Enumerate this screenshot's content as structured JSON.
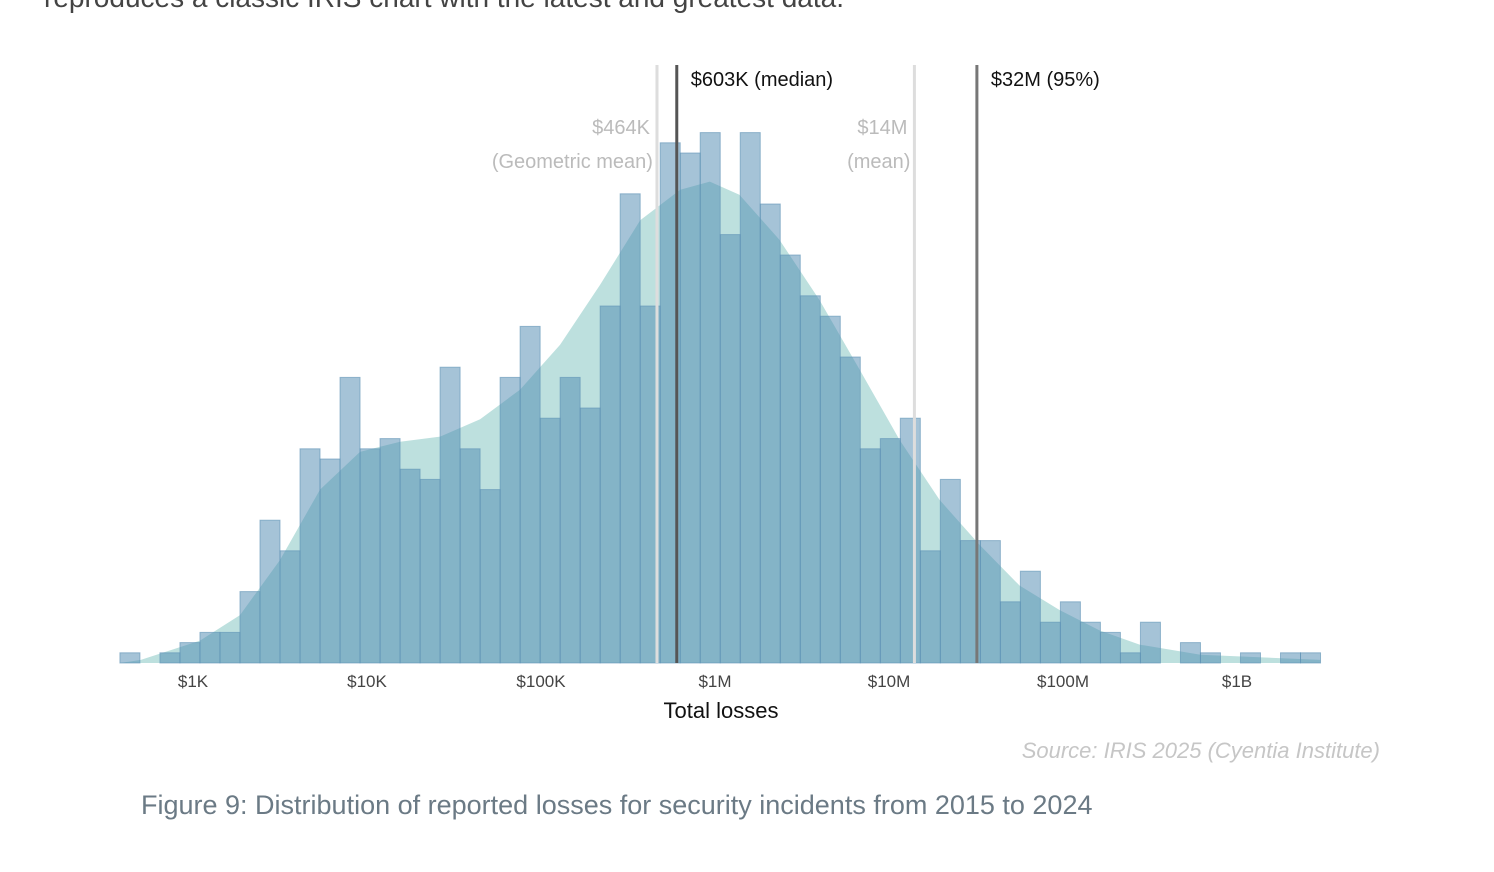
{
  "intro_text": "reproduces a classic IRIS chart with the latest and greatest data.",
  "caption": "Figure 9: Distribution of reported losses for security incidents from 2015 to 2024",
  "source": "Source: IRIS 2025 (Cyentia Institute)",
  "chart_data": {
    "type": "bar",
    "title": "",
    "xlabel": "Total losses",
    "ylabel": "",
    "x_scale": "log10",
    "xlim_log10": [
      2.58,
      9.48
    ],
    "bin_width_log10": 0.115,
    "ylim": [
      0,
      55
    ],
    "grid": false,
    "x_ticks": [
      {
        "log10": 3,
        "label": "$1K"
      },
      {
        "log10": 4,
        "label": "$10K"
      },
      {
        "log10": 5,
        "label": "$100K"
      },
      {
        "log10": 6,
        "label": "$1M"
      },
      {
        "log10": 7,
        "label": "$10M"
      },
      {
        "log10": 8,
        "label": "$100M"
      },
      {
        "log10": 9,
        "label": "$1B"
      }
    ],
    "bar_counts": [
      1,
      0,
      1,
      2,
      3,
      3,
      7,
      14,
      11,
      21,
      20,
      28,
      21,
      22,
      19,
      18,
      29,
      21,
      17,
      28,
      33,
      24,
      28,
      25,
      35,
      46,
      35,
      51,
      50,
      52,
      42,
      52,
      45,
      40,
      36,
      34,
      30,
      21,
      22,
      24,
      11,
      18,
      12,
      12,
      6,
      9,
      4,
      6,
      4,
      3,
      1,
      4,
      0,
      2,
      1,
      0,
      1,
      0,
      1,
      1
    ],
    "density": [
      [
        2.7,
        0.3
      ],
      [
        3.04,
        2.2
      ],
      [
        3.27,
        4.7
      ],
      [
        3.5,
        10.1
      ],
      [
        3.73,
        17.0
      ],
      [
        3.96,
        20.7
      ],
      [
        4.19,
        21.7
      ],
      [
        4.42,
        22.2
      ],
      [
        4.65,
        23.9
      ],
      [
        4.88,
        26.8
      ],
      [
        5.11,
        31.2
      ],
      [
        5.34,
        37.1
      ],
      [
        5.57,
        43.4
      ],
      [
        5.8,
        46.4
      ],
      [
        5.97,
        47.2
      ],
      [
        6.14,
        45.9
      ],
      [
        6.37,
        41.5
      ],
      [
        6.6,
        35.6
      ],
      [
        6.83,
        28.8
      ],
      [
        7.06,
        21.9
      ],
      [
        7.29,
        16.0
      ],
      [
        7.52,
        11.6
      ],
      [
        7.75,
        7.6
      ],
      [
        7.98,
        5.2
      ],
      [
        8.21,
        3.2
      ],
      [
        8.44,
        1.8
      ],
      [
        8.79,
        0.8
      ],
      [
        9.48,
        0.3
      ]
    ],
    "reference_lines": [
      {
        "name": "geometric-mean",
        "value": 464000,
        "label1": "$464K",
        "label2": "(Geometric mean)",
        "style": "light"
      },
      {
        "name": "median",
        "value": 603000,
        "label1": "$603K (median)",
        "style": "dark"
      },
      {
        "name": "mean",
        "value": 14000000,
        "label1": "$14M",
        "label2": "(mean)",
        "style": "light"
      },
      {
        "name": "p95",
        "value": 32000000,
        "label1": "$32M (95%)",
        "style": "dark"
      }
    ],
    "colors": {
      "bar": "#4b87af",
      "density": "#bde0de",
      "line_dark": "#555555",
      "line_light": "#dddddd"
    }
  }
}
